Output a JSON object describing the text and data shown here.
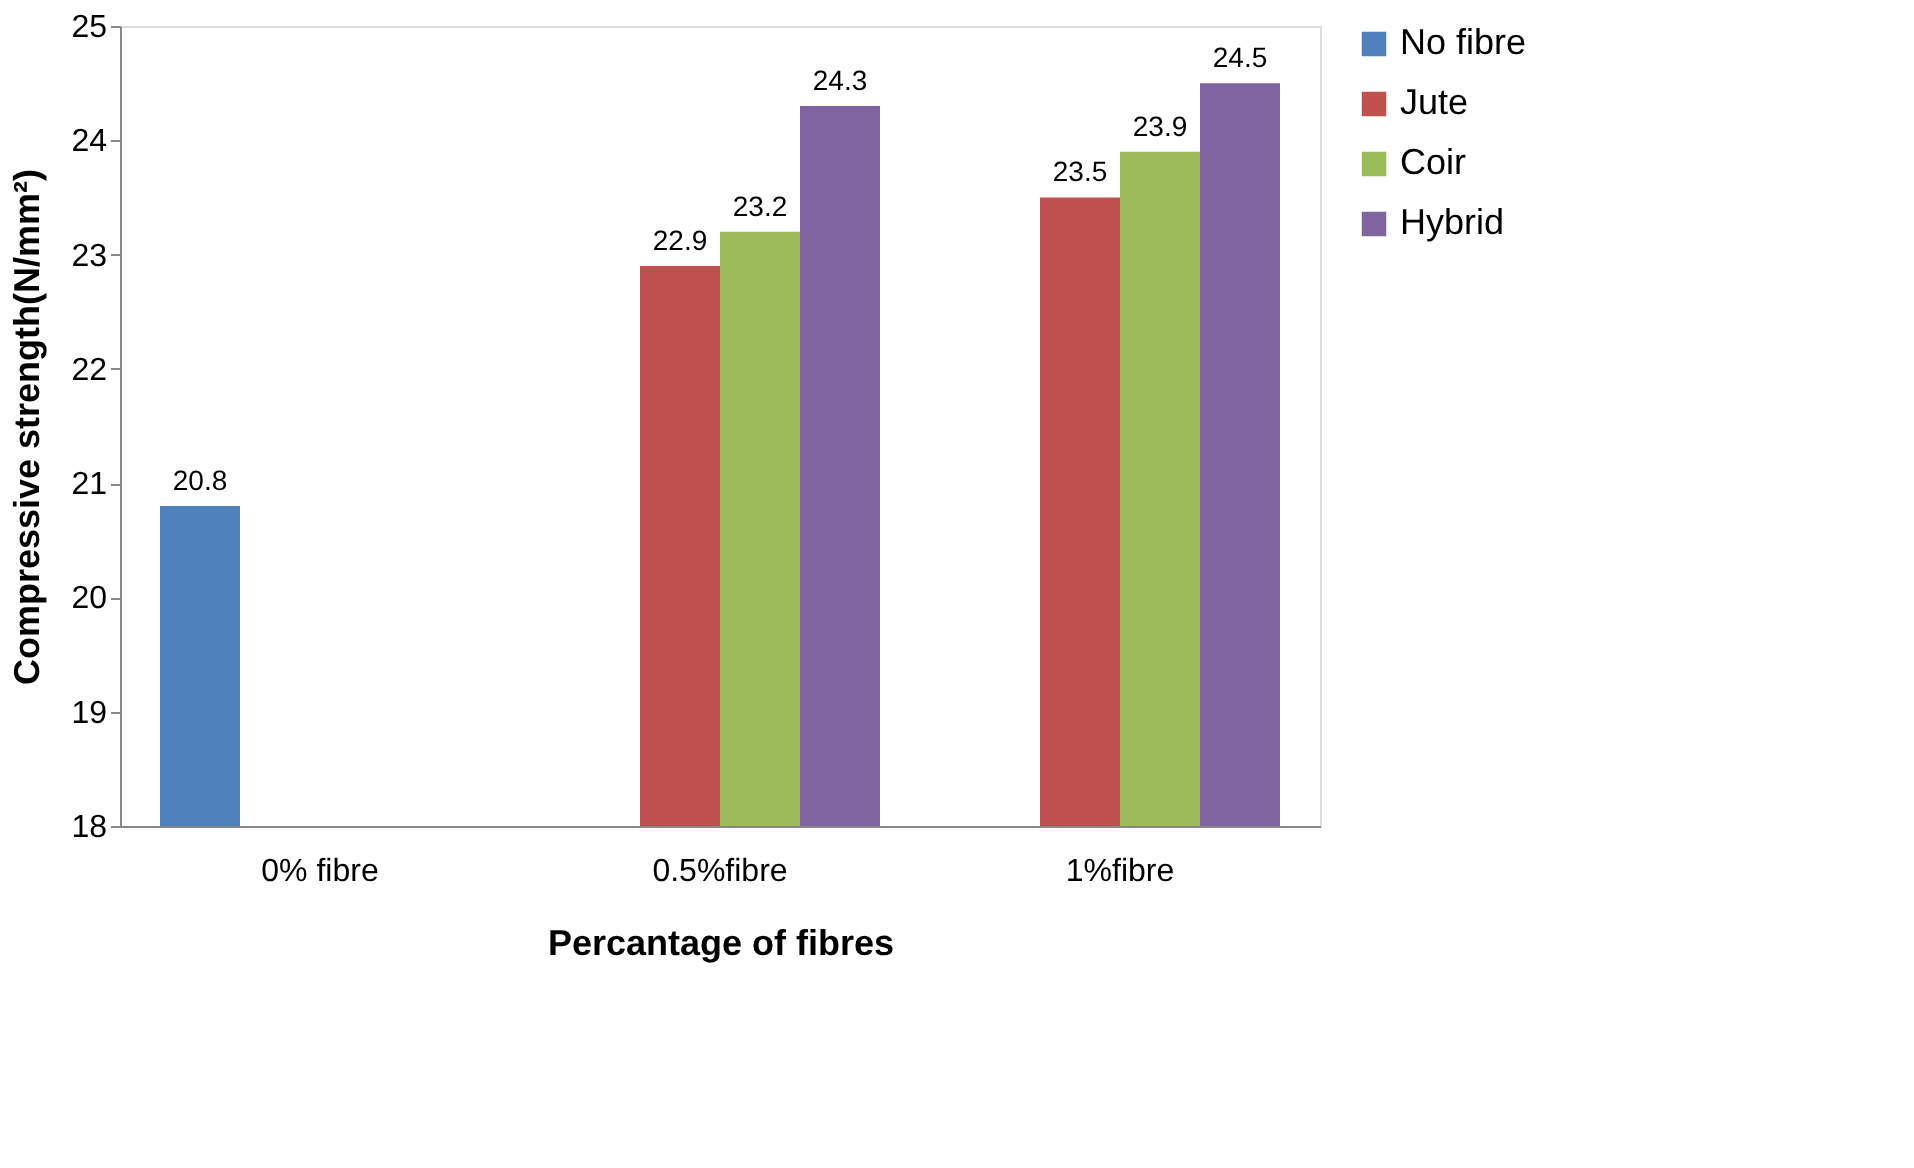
{
  "chart_data": {
    "type": "bar",
    "xlabel": "Percantage of fibres",
    "ylabel": "Compressive strength(N/mm²)",
    "categories": [
      "0% fibre",
      "0.5%fibre",
      "1%fibre"
    ],
    "series": [
      {
        "name": "No fibre",
        "color": "#4f81bd",
        "values": [
          20.8,
          null,
          null
        ]
      },
      {
        "name": "Jute",
        "color": "#c0504d",
        "values": [
          null,
          22.9,
          23.5
        ]
      },
      {
        "name": "Coir",
        "color": "#9bbb59",
        "values": [
          null,
          23.2,
          23.9
        ]
      },
      {
        "name": "Hybrid",
        "color": "#8064a2",
        "values": [
          null,
          24.3,
          24.5
        ]
      }
    ],
    "ylim": [
      18,
      25
    ],
    "yticks": [
      18,
      19,
      20,
      21,
      22,
      23,
      24,
      25
    ],
    "grid": false,
    "legend": "right",
    "data_labels": true
  }
}
